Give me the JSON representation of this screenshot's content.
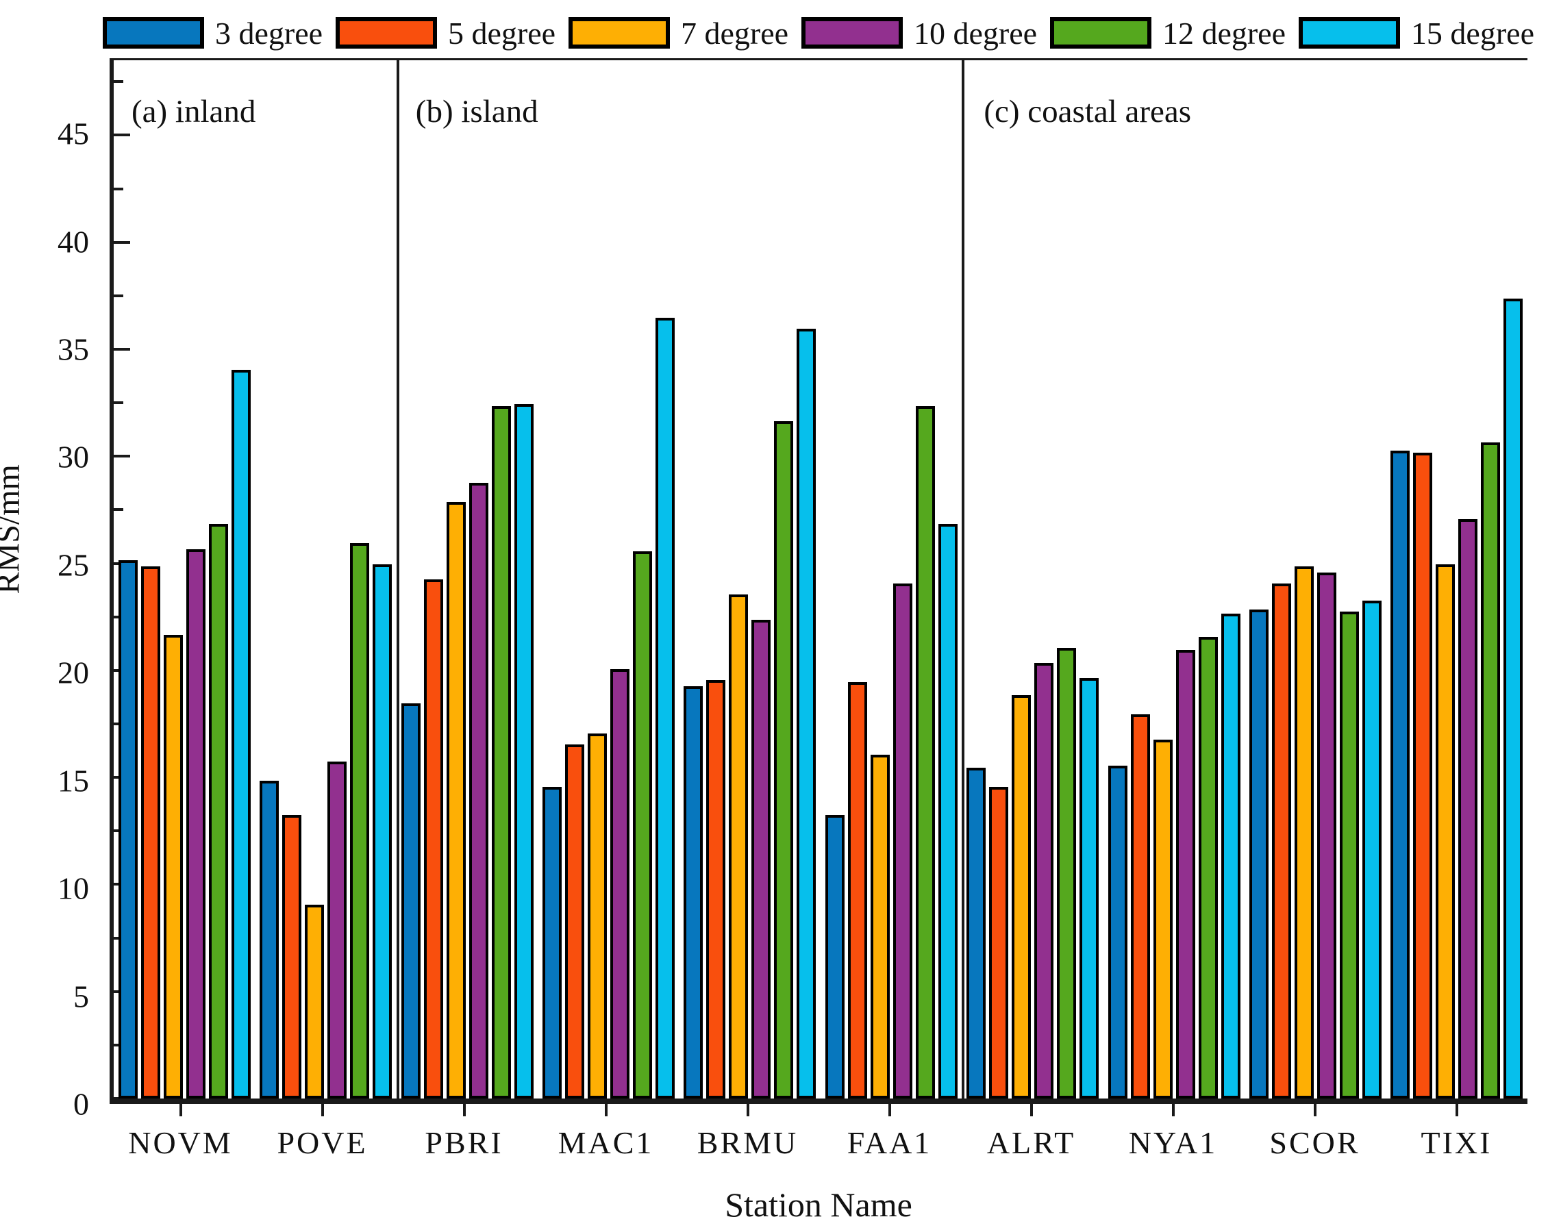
{
  "legend": {
    "items": [
      {
        "label": "3 degree",
        "color": "#0777be"
      },
      {
        "label": "5 degree",
        "color": "#f94f0d"
      },
      {
        "label": "7 degree",
        "color": "#feaf04"
      },
      {
        "label": "10 degree",
        "color": "#92308f"
      },
      {
        "label": "12 degree",
        "color": "#55a81e"
      },
      {
        "label": "15 degree",
        "color": "#06bfec"
      }
    ]
  },
  "y_axis": {
    "label": "RMS/mm",
    "ticks": [
      0,
      5,
      10,
      15,
      20,
      25,
      30,
      35,
      40,
      45
    ],
    "minor_step": 2.5
  },
  "x_axis": {
    "label": "Station Name"
  },
  "panel_labels": [
    "(a) inland",
    "(b) island",
    "(c) coastal areas"
  ],
  "chart_data": {
    "type": "bar",
    "title": "",
    "xlabel": "Station Name",
    "ylabel": "RMS/mm",
    "ylim": [
      0,
      48.5
    ],
    "grid": false,
    "legend_position": "top",
    "categories": [
      "NOVM",
      "POVE",
      "PBRI",
      "MAC1",
      "BRMU",
      "FAA1",
      "ALRT",
      "NYA1",
      "SCOR",
      "TIXI"
    ],
    "series": [
      {
        "name": "3 degree",
        "color": "#0777be",
        "values": [
          24.9,
          14.6,
          18.2,
          14.3,
          19.0,
          13.0,
          15.2,
          15.3,
          22.6,
          30.0
        ]
      },
      {
        "name": "5 degree",
        "color": "#f94f0d",
        "values": [
          24.6,
          13.0,
          24.0,
          16.3,
          19.3,
          19.2,
          14.3,
          17.7,
          23.8,
          29.9
        ]
      },
      {
        "name": "7 degree",
        "color": "#feaf04",
        "values": [
          21.4,
          8.8,
          27.6,
          16.8,
          23.3,
          15.8,
          18.6,
          16.5,
          24.6,
          24.7
        ]
      },
      {
        "name": "10 degree",
        "color": "#92308f",
        "values": [
          25.4,
          15.5,
          28.5,
          19.8,
          22.1,
          23.8,
          20.1,
          20.7,
          24.3,
          26.8
        ]
      },
      {
        "name": "12 degree",
        "color": "#55a81e",
        "values": [
          26.6,
          25.7,
          32.1,
          25.3,
          31.4,
          32.1,
          20.8,
          21.3,
          22.5,
          30.4
        ]
      },
      {
        "name": "15 degree",
        "color": "#06bfec",
        "values": [
          33.8,
          24.7,
          32.2,
          36.2,
          35.7,
          26.6,
          19.4,
          22.4,
          23.0,
          37.1
        ]
      }
    ],
    "panels": [
      {
        "label": "(a) inland",
        "stations": [
          "NOVM",
          "POVE"
        ]
      },
      {
        "label": "(b) island",
        "stations": [
          "PBRI",
          "MAC1",
          "BRMU",
          "FAA1"
        ]
      },
      {
        "label": "(c) coastal areas",
        "stations": [
          "ALRT",
          "NYA1",
          "SCOR",
          "TIXI"
        ]
      }
    ],
    "dividers_after": [
      "POVE",
      "FAA1"
    ],
    "annotations": [
      "(a) inland",
      "(b) island",
      "(c) coastal areas"
    ]
  }
}
